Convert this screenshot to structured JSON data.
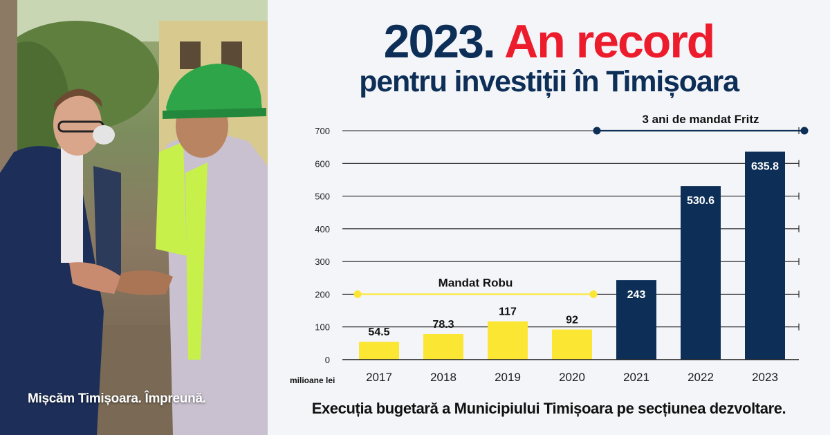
{
  "header": {
    "title_year": "2023.",
    "title_highlight": "An record",
    "subtitle": "pentru investiții în Timișoara"
  },
  "photo": {
    "slogan": "Mișcăm Timișoara. Împreună."
  },
  "footer": {
    "caption": "Execuția bugetară a Municipiului Timișoara pe secțiunea dezvoltare."
  },
  "colors": {
    "navy": "#0d2f57",
    "yellow": "#fce634",
    "red": "#ec1c2c"
  },
  "chart_data": {
    "type": "bar",
    "categories": [
      "2017",
      "2018",
      "2019",
      "2020",
      "2021",
      "2022",
      "2023"
    ],
    "values": [
      54.5,
      78.3,
      117,
      92,
      243,
      530.6,
      635.8
    ],
    "value_labels": [
      "54.5",
      "78.3",
      "117",
      "92",
      "243",
      "530.6",
      "635.8"
    ],
    "bar_colors": [
      "#fce634",
      "#fce634",
      "#fce634",
      "#fce634",
      "#0d2f57",
      "#0d2f57",
      "#0d2f57"
    ],
    "ylim": [
      0,
      700
    ],
    "yticks": [
      0,
      100,
      200,
      300,
      400,
      500,
      600,
      700
    ],
    "ylabel": "milioane lei",
    "grid": true,
    "annotations": [
      {
        "label": "Mandat Robu",
        "from": "2017",
        "to": "2020",
        "y": 200,
        "color": "#fce634"
      },
      {
        "label": "3 ani de mandat Fritz",
        "from": "2021",
        "to": "2023",
        "y": 700,
        "color": "#0d2f57"
      }
    ]
  }
}
